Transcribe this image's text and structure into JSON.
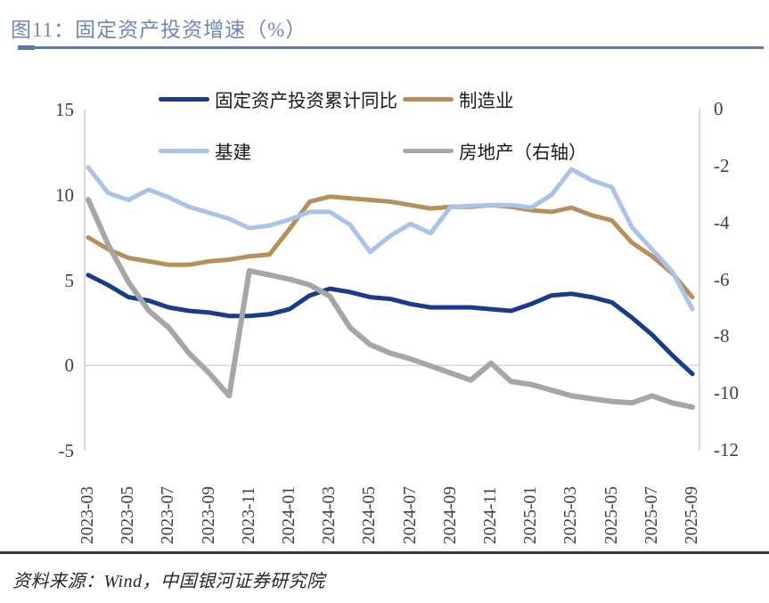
{
  "figure": {
    "title": "图11：固定资产投资增速（%）",
    "source": "资料来源：Wind，中国银河证券研究院"
  },
  "colors": {
    "title_blue": "#7185B5",
    "rule_blue": "#5C79AE",
    "footer_rule": "#253858",
    "axis_line": "#D9D9D9",
    "axis_text": "#404040",
    "series_fai": "#1A3B8C",
    "series_manufacturing": "#B78F5A",
    "series_infrastructure": "#A9C3E9",
    "series_realestate": "#A6A6A6"
  },
  "chart_data": {
    "type": "line",
    "title": "固定资产投资增速（%）",
    "legend_position": "top",
    "grid": "single horizontal gridline at left-axis 0",
    "x": [
      "2023-03",
      "2023-04",
      "2023-05",
      "2023-06",
      "2023-07",
      "2023-08",
      "2023-09",
      "2023-10",
      "2023-11",
      "2023-12",
      "2024-01",
      "2024-02",
      "2024-03",
      "2024-04",
      "2024-05",
      "2024-06",
      "2024-07",
      "2024-08",
      "2024-09",
      "2024-10",
      "2024-11",
      "2024-12",
      "2025-01",
      "2025-02",
      "2025-03",
      "2025-04",
      "2025-05",
      "2025-06",
      "2025-07",
      "2025-08",
      "2025-09"
    ],
    "x_tick_labels": [
      "2023-03",
      "2023-05",
      "2023-07",
      "2023-09",
      "2023-11",
      "2024-01",
      "2024-03",
      "2024-05",
      "2024-07",
      "2024-09",
      "2024-11",
      "2025-01",
      "2025-03",
      "2025-05",
      "2025-07",
      "2025-09"
    ],
    "left_axis": {
      "ticks": [
        "15",
        "10",
        "5",
        "0",
        "-5"
      ],
      "tick_values": [
        15,
        10,
        5,
        0,
        -5
      ],
      "ylim": [
        -5,
        15
      ]
    },
    "right_axis": {
      "ticks": [
        "0",
        "-2",
        "-4",
        "-6",
        "-8",
        "-10",
        "-12"
      ],
      "tick_values": [
        0,
        -2,
        -4,
        -6,
        -8,
        -10,
        -12
      ],
      "ylim": [
        -12,
        0
      ]
    },
    "series": [
      {
        "key": "fai",
        "name": "固定资产投资累计同比",
        "axis": "left",
        "color": "#1A3B8C",
        "width": 5,
        "values": [
          5.3,
          4.7,
          4.0,
          3.8,
          3.4,
          3.2,
          3.1,
          2.9,
          2.9,
          3.0,
          3.3,
          4.1,
          4.5,
          4.3,
          4.0,
          3.9,
          3.6,
          3.4,
          3.4,
          3.4,
          3.3,
          3.2,
          3.6,
          4.1,
          4.2,
          4.0,
          3.7,
          2.8,
          1.8,
          0.6,
          -0.5
        ]
      },
      {
        "key": "manufacturing",
        "name": "制造业",
        "axis": "left",
        "color": "#B78F5A",
        "width": 5,
        "values": [
          7.5,
          6.8,
          6.3,
          6.1,
          5.9,
          5.9,
          6.1,
          6.2,
          6.4,
          6.5,
          8.0,
          9.6,
          9.9,
          9.8,
          9.7,
          9.6,
          9.4,
          9.2,
          9.3,
          9.3,
          9.4,
          9.3,
          9.1,
          9.0,
          9.25,
          8.8,
          8.5,
          7.2,
          6.4,
          5.4,
          4.0
        ]
      },
      {
        "key": "infrastructure",
        "name": "基建",
        "axis": "left",
        "color": "#A9C3E9",
        "width": 5,
        "values": [
          11.6,
          10.1,
          9.7,
          10.3,
          9.85,
          9.3,
          8.95,
          8.6,
          8.05,
          8.2,
          8.55,
          9.0,
          9.0,
          8.25,
          6.65,
          7.6,
          8.3,
          7.75,
          9.3,
          9.35,
          9.4,
          9.4,
          9.25,
          10.0,
          11.5,
          10.85,
          10.45,
          8.1,
          6.8,
          5.5,
          3.3
        ]
      },
      {
        "key": "realestate",
        "name": "房地产（右轴）",
        "axis": "right",
        "color": "#A6A6A6",
        "width": 6,
        "values": [
          -3.2,
          -4.8,
          -6.1,
          -7.1,
          -7.7,
          -8.6,
          -9.3,
          -10.1,
          -5.7,
          -5.85,
          -6.0,
          -6.2,
          -6.6,
          -7.7,
          -8.3,
          -8.6,
          -8.8,
          -9.05,
          -9.3,
          -9.55,
          -8.95,
          -9.6,
          -9.7,
          -9.9,
          -10.1,
          -10.2,
          -10.3,
          -10.35,
          -10.1,
          -10.35,
          -10.5
        ]
      }
    ]
  }
}
